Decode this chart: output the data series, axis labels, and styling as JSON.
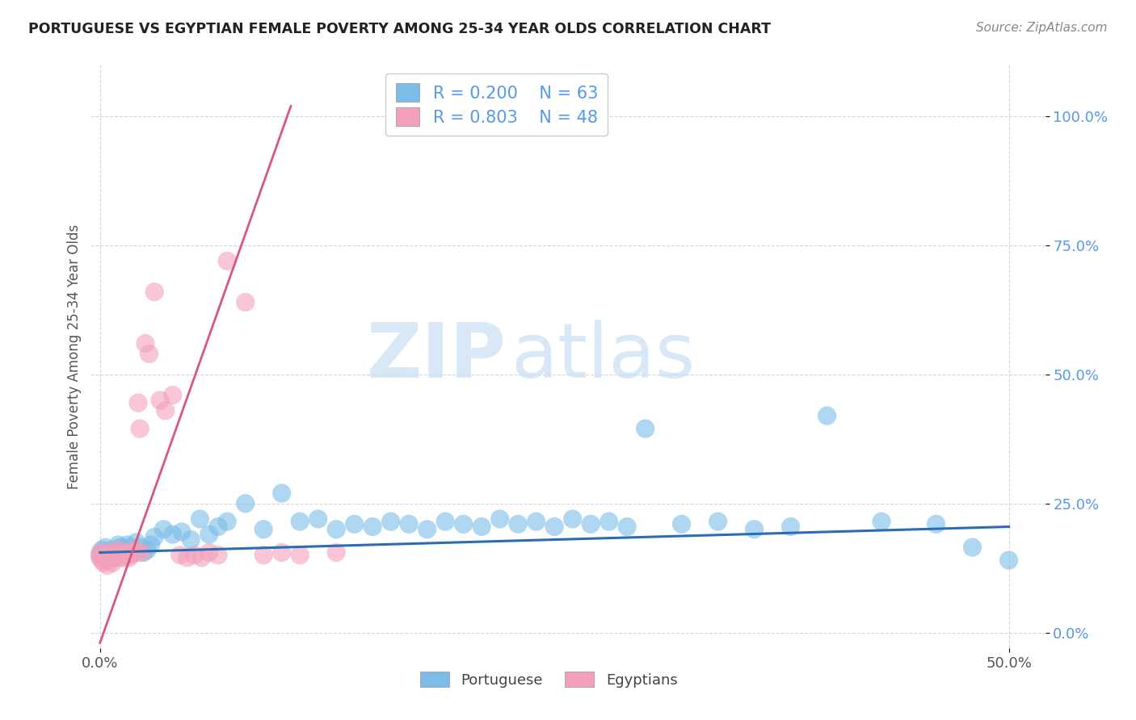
{
  "title": "PORTUGUESE VS EGYPTIAN FEMALE POVERTY AMONG 25-34 YEAR OLDS CORRELATION CHART",
  "source": "Source: ZipAtlas.com",
  "ylabel": "Female Poverty Among 25-34 Year Olds",
  "xlim": [
    -0.005,
    0.52
  ],
  "ylim": [
    -0.03,
    1.1
  ],
  "portuguese_color": "#7bbde8",
  "egyptian_color": "#f4a0bb",
  "portuguese_line_color": "#2a6db5",
  "egyptian_line_color": "#d9587a",
  "R_portuguese": 0.2,
  "N_portuguese": 63,
  "R_egyptian": 0.803,
  "N_egyptian": 48,
  "legend_label_portuguese": "Portuguese",
  "legend_label_egyptian": "Egyptians",
  "watermark_zip": "ZIP",
  "watermark_atlas": "atlas",
  "portuguese_x": [
    0.0,
    0.001,
    0.002,
    0.003,
    0.004,
    0.005,
    0.006,
    0.007,
    0.008,
    0.01,
    0.011,
    0.012,
    0.013,
    0.015,
    0.016,
    0.017,
    0.018,
    0.02,
    0.022,
    0.024,
    0.026,
    0.028,
    0.03,
    0.035,
    0.04,
    0.045,
    0.05,
    0.055,
    0.06,
    0.065,
    0.07,
    0.08,
    0.09,
    0.1,
    0.11,
    0.12,
    0.13,
    0.14,
    0.15,
    0.16,
    0.17,
    0.18,
    0.19,
    0.2,
    0.21,
    0.22,
    0.23,
    0.24,
    0.25,
    0.26,
    0.27,
    0.28,
    0.29,
    0.3,
    0.32,
    0.34,
    0.36,
    0.38,
    0.4,
    0.43,
    0.46,
    0.48,
    0.5
  ],
  "portuguese_y": [
    0.15,
    0.16,
    0.155,
    0.165,
    0.145,
    0.155,
    0.15,
    0.16,
    0.145,
    0.17,
    0.165,
    0.155,
    0.16,
    0.17,
    0.165,
    0.155,
    0.16,
    0.175,
    0.165,
    0.155,
    0.16,
    0.17,
    0.185,
    0.2,
    0.19,
    0.195,
    0.18,
    0.22,
    0.19,
    0.205,
    0.215,
    0.25,
    0.2,
    0.27,
    0.215,
    0.22,
    0.2,
    0.21,
    0.205,
    0.215,
    0.21,
    0.2,
    0.215,
    0.21,
    0.205,
    0.22,
    0.21,
    0.215,
    0.205,
    0.22,
    0.21,
    0.215,
    0.205,
    0.395,
    0.21,
    0.215,
    0.2,
    0.205,
    0.42,
    0.215,
    0.21,
    0.165,
    0.14
  ],
  "egyptian_x": [
    0.0,
    0.0,
    0.001,
    0.001,
    0.002,
    0.002,
    0.003,
    0.003,
    0.004,
    0.004,
    0.005,
    0.005,
    0.006,
    0.007,
    0.008,
    0.009,
    0.01,
    0.011,
    0.012,
    0.013,
    0.014,
    0.015,
    0.016,
    0.017,
    0.018,
    0.019,
    0.02,
    0.021,
    0.022,
    0.023,
    0.025,
    0.027,
    0.03,
    0.033,
    0.036,
    0.04,
    0.044,
    0.048,
    0.052,
    0.056,
    0.06,
    0.065,
    0.07,
    0.08,
    0.09,
    0.1,
    0.11,
    0.13
  ],
  "egyptian_y": [
    0.155,
    0.145,
    0.15,
    0.14,
    0.145,
    0.135,
    0.15,
    0.14,
    0.145,
    0.13,
    0.155,
    0.145,
    0.15,
    0.135,
    0.145,
    0.155,
    0.16,
    0.145,
    0.15,
    0.145,
    0.155,
    0.15,
    0.145,
    0.15,
    0.155,
    0.16,
    0.155,
    0.445,
    0.395,
    0.155,
    0.56,
    0.54,
    0.66,
    0.45,
    0.43,
    0.46,
    0.15,
    0.145,
    0.15,
    0.145,
    0.155,
    0.15,
    0.72,
    0.64,
    0.15,
    0.155,
    0.15,
    0.155
  ],
  "egy_line_x0": 0.0,
  "egy_line_y0": -0.02,
  "egy_line_x1": 0.105,
  "egy_line_y1": 1.02,
  "port_line_x0": 0.0,
  "port_line_y0": 0.155,
  "port_line_x1": 0.5,
  "port_line_y1": 0.205
}
